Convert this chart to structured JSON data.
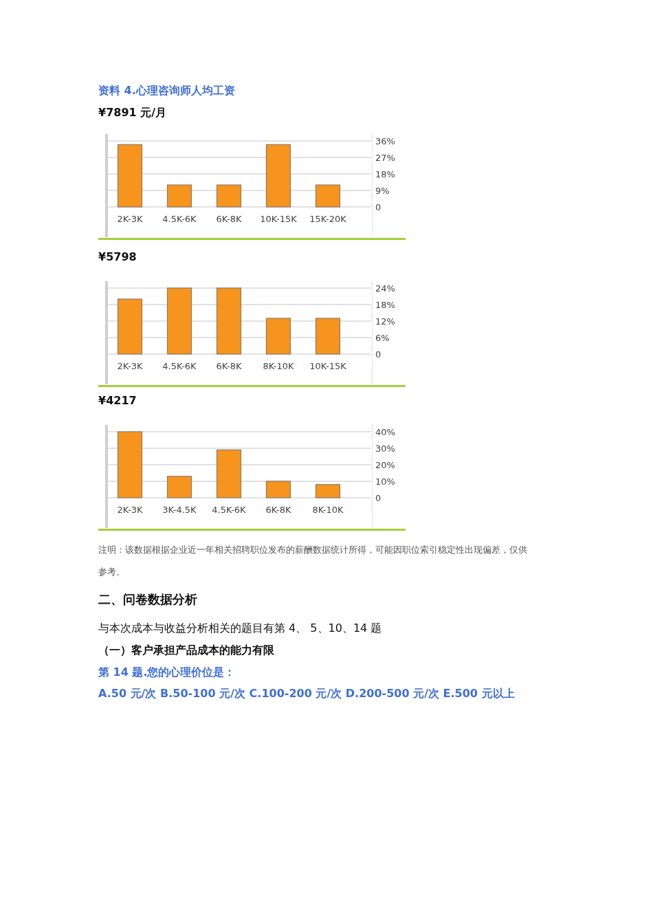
{
  "chart_data": [
    {
      "type": "bar",
      "title": "资料 4.心理咨询师人均工资",
      "subtitle": "¥7891 元/月",
      "categories": [
        "2K-3K",
        "4.5K-6K",
        "6K-8K",
        "10K-15K",
        "15K-20K"
      ],
      "values": [
        34,
        12,
        12,
        34,
        12
      ],
      "color": "#f7941d",
      "ylim": [
        0,
        36
      ],
      "yticks": [
        {
          "value": 0,
          "label": "0"
        },
        {
          "value": 9,
          "label": "9%"
        },
        {
          "value": 18,
          "label": "18%"
        },
        {
          "value": 27,
          "label": "27%"
        },
        {
          "value": 36,
          "label": "36%"
        }
      ],
      "grid": "y"
    },
    {
      "type": "bar",
      "title": "¥5798",
      "categories": [
        "2K-3K",
        "4.5K-6K",
        "6K-8K",
        "8K-10K",
        "10K-15K"
      ],
      "values": [
        20,
        24,
        24,
        13,
        13
      ],
      "color": "#f7941d",
      "ylim": [
        0,
        24
      ],
      "yticks": [
        {
          "value": 0,
          "label": "0"
        },
        {
          "value": 6,
          "label": "6%"
        },
        {
          "value": 12,
          "label": "12%"
        },
        {
          "value": 18,
          "label": "18%"
        },
        {
          "value": 24,
          "label": "24%"
        }
      ],
      "grid": "y"
    },
    {
      "type": "bar",
      "title": "¥4217",
      "categories": [
        "2K-3K",
        "3K-4.5K",
        "4.5K-6K",
        "6K-8K",
        "8K-10K"
      ],
      "values": [
        40,
        13,
        29,
        10,
        8
      ],
      "color": "#f7941d",
      "ylim": [
        0,
        40
      ],
      "yticks": [
        {
          "value": 0,
          "label": "0"
        },
        {
          "value": 10,
          "label": "10%"
        },
        {
          "value": 20,
          "label": "20%"
        },
        {
          "value": 30,
          "label": "30%"
        },
        {
          "value": 40,
          "label": "40%"
        }
      ],
      "grid": "y",
      "annotations": [
        "注明：该数据根据企业近一年相关招聘职位发布的薪酬数据统计所得，可能因职位索引稳定性出现偏差，仅供参考。",
        "二、问卷数据分析",
        "与本次成本与收益分析相关的题目有第 4、 5、10、14 题",
        "（一）客户承担产品成本的能力有限",
        "第 14 题.您的心理价位是：",
        "A.50 元/次 B.50-100 元/次 C.100-200 元/次  D.200-500 元/次 E.500 元以上"
      ]
    }
  ]
}
